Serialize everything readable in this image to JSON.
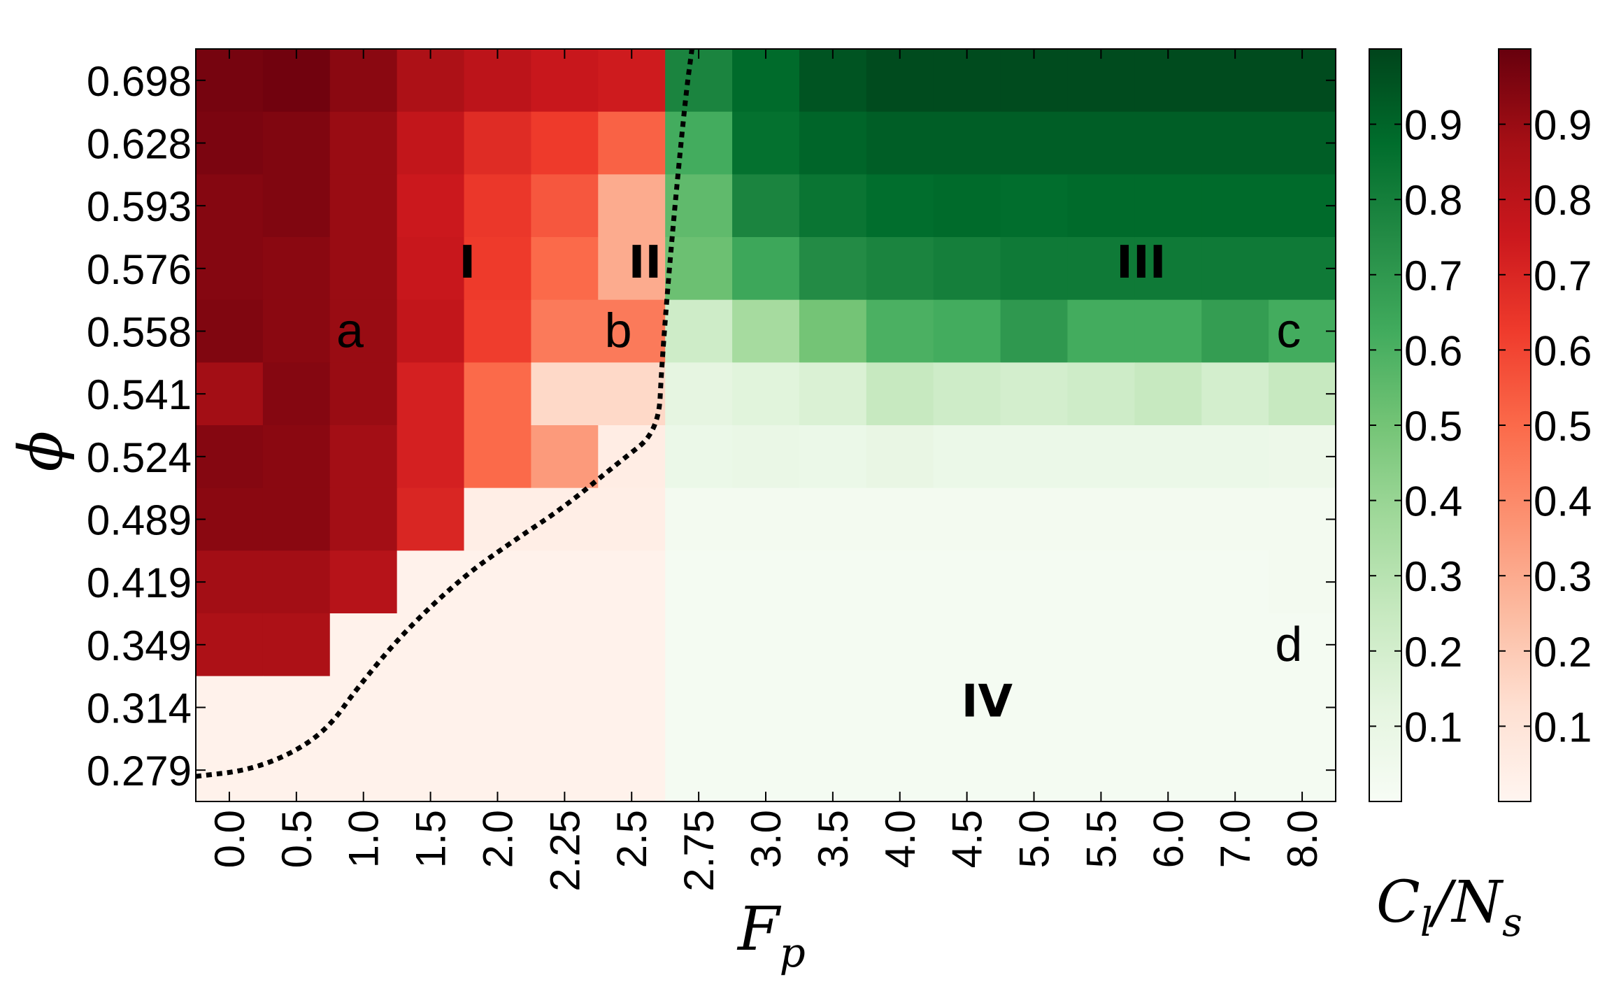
{
  "chart_data": {
    "type": "heatmap",
    "xlabel": "F_p",
    "ylabel": "φ",
    "x": [
      "0.0",
      "0.5",
      "1.0",
      "1.5",
      "2.0",
      "2.25",
      "2.5",
      "2.75",
      "3.0",
      "3.5",
      "4.0",
      "4.5",
      "5.0",
      "5.5",
      "6.0",
      "7.0",
      "8.0"
    ],
    "y": [
      "0.698",
      "0.628",
      "0.593",
      "0.576",
      "0.558",
      "0.541",
      "0.524",
      "0.489",
      "0.419",
      "0.349",
      "0.314",
      "0.279"
    ],
    "colorbar_label": "C_l/N_s",
    "colorbar_ticks": [
      "0.1",
      "0.2",
      "0.3",
      "0.4",
      "0.5",
      "0.6",
      "0.7",
      "0.8",
      "0.9"
    ],
    "colormaps": {
      "red": {
        "low": "#fff5f0",
        "high": "#67000d",
        "applies_to_x": [
          "0.0",
          "0.5",
          "1.0",
          "1.5",
          "2.0",
          "2.25",
          "2.5"
        ]
      },
      "green": {
        "low": "#f7fcf5",
        "high": "#00441b",
        "applies_to_x": [
          "2.75",
          "3.0",
          "3.5",
          "4.0",
          "4.5",
          "5.0",
          "5.5",
          "6.0",
          "7.0",
          "8.0"
        ]
      }
    },
    "values": [
      [
        0.97,
        0.98,
        0.93,
        0.85,
        0.8,
        0.76,
        0.74,
        0.78,
        0.88,
        0.95,
        0.98,
        0.98,
        0.98,
        0.98,
        0.98,
        0.98,
        0.98
      ],
      [
        0.96,
        0.95,
        0.9,
        0.78,
        0.68,
        0.63,
        0.52,
        0.62,
        0.86,
        0.9,
        0.92,
        0.92,
        0.92,
        0.92,
        0.92,
        0.92,
        0.92
      ],
      [
        0.94,
        0.95,
        0.9,
        0.75,
        0.64,
        0.55,
        0.3,
        0.55,
        0.78,
        0.84,
        0.87,
        0.88,
        0.87,
        0.88,
        0.88,
        0.88,
        0.88
      ],
      [
        0.94,
        0.93,
        0.9,
        0.76,
        0.63,
        0.5,
        0.3,
        0.52,
        0.64,
        0.75,
        0.78,
        0.8,
        0.82,
        0.82,
        0.82,
        0.82,
        0.82
      ],
      [
        0.95,
        0.93,
        0.9,
        0.78,
        0.62,
        0.45,
        0.45,
        0.22,
        0.36,
        0.5,
        0.6,
        0.62,
        0.7,
        0.62,
        0.62,
        0.68,
        0.62
      ],
      [
        0.88,
        0.94,
        0.9,
        0.72,
        0.5,
        0.15,
        0.15,
        0.12,
        0.14,
        0.17,
        0.25,
        0.22,
        0.2,
        0.22,
        0.25,
        0.2,
        0.25
      ],
      [
        0.94,
        0.93,
        0.88,
        0.72,
        0.5,
        0.35,
        0.05,
        0.08,
        0.09,
        0.08,
        0.1,
        0.08,
        0.08,
        0.08,
        0.08,
        0.08,
        0.07
      ],
      [
        0.93,
        0.93,
        0.88,
        0.7,
        0.04,
        0.04,
        0.04,
        0.03,
        0.03,
        0.03,
        0.03,
        0.03,
        0.03,
        0.03,
        0.03,
        0.03,
        0.03
      ],
      [
        0.88,
        0.88,
        0.82,
        0.02,
        0.02,
        0.02,
        0.02,
        0.02,
        0.02,
        0.02,
        0.02,
        0.02,
        0.02,
        0.02,
        0.02,
        0.02,
        0.03
      ],
      [
        0.85,
        0.85,
        0.02,
        0.02,
        0.02,
        0.02,
        0.02,
        0.02,
        0.02,
        0.02,
        0.02,
        0.02,
        0.02,
        0.02,
        0.02,
        0.02,
        0.02
      ],
      [
        0.02,
        0.02,
        0.02,
        0.02,
        0.02,
        0.02,
        0.02,
        0.02,
        0.02,
        0.02,
        0.02,
        0.02,
        0.02,
        0.02,
        0.02,
        0.02,
        0.02
      ],
      [
        0.02,
        0.02,
        0.02,
        0.02,
        0.02,
        0.02,
        0.02,
        0.02,
        0.02,
        0.02,
        0.02,
        0.02,
        0.02,
        0.02,
        0.02,
        0.02,
        0.02
      ]
    ],
    "boundary_line": {
      "style": "dotted",
      "color": "#000000",
      "points": [
        [
          -0.5,
          11.1
        ],
        [
          0.3,
          11.0
        ],
        [
          1.0,
          10.7
        ],
        [
          1.5,
          10.3
        ],
        [
          1.9,
          9.7
        ],
        [
          2.6,
          8.8
        ],
        [
          3.5,
          7.9
        ],
        [
          4.3,
          7.3
        ],
        [
          5.0,
          6.8
        ],
        [
          5.8,
          6.1
        ],
        [
          6.4,
          5.6
        ],
        [
          6.45,
          4.5
        ],
        [
          6.6,
          2.5
        ],
        [
          6.8,
          0.3
        ],
        [
          6.9,
          -0.5
        ]
      ]
    },
    "region_labels": [
      {
        "text": "I",
        "x": 3.55,
        "y": 2.95
      },
      {
        "text": "II",
        "x": 6.2,
        "y": 2.95
      },
      {
        "text": "III",
        "x": 13.6,
        "y": 2.95
      },
      {
        "text": "IV",
        "x": 11.3,
        "y": 9.95
      }
    ],
    "corner_labels": [
      {
        "text": "a",
        "x": 1.8,
        "y": 4.05
      },
      {
        "text": "b",
        "x": 5.8,
        "y": 4.05
      },
      {
        "text": "c",
        "x": 15.8,
        "y": 4.05
      },
      {
        "text": "d",
        "x": 15.8,
        "y": 9.05
      }
    ]
  }
}
